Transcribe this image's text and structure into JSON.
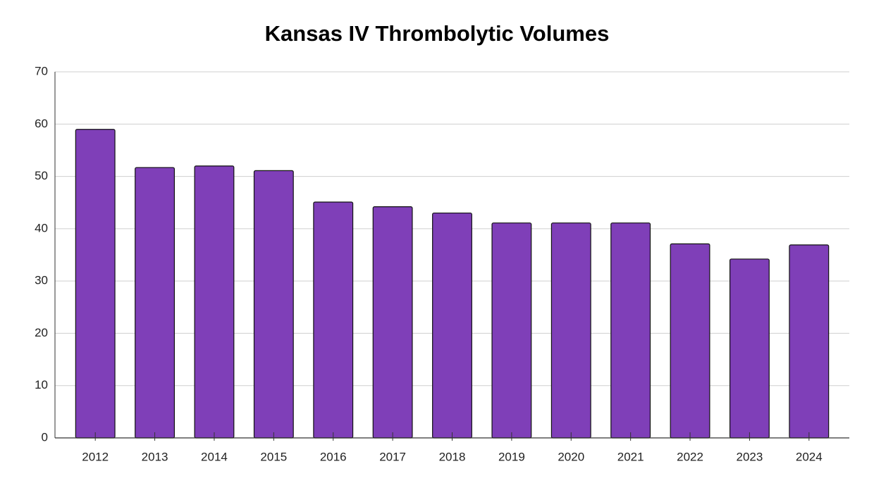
{
  "chart_data": {
    "type": "bar",
    "title": "Kansas IV Thrombolytic Volumes",
    "categories": [
      "2012",
      "2013",
      "2014",
      "2015",
      "2016",
      "2017",
      "2018",
      "2019",
      "2020",
      "2021",
      "2022",
      "2023",
      "2024"
    ],
    "values": [
      59,
      51.7,
      52,
      51.1,
      45.1,
      44.2,
      43,
      41.1,
      41.1,
      41.1,
      37.1,
      34.2,
      36.9
    ],
    "color": "#7f3fb8",
    "ylim": [
      0,
      70
    ],
    "yticks": [
      0,
      10,
      20,
      30,
      40,
      50,
      60,
      70
    ],
    "grid": true
  }
}
